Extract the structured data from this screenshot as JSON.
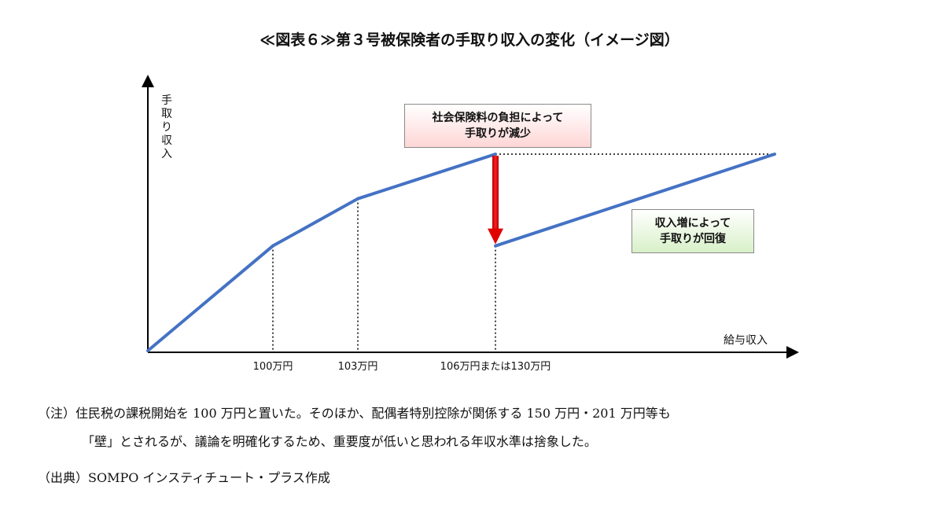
{
  "title": "≪図表６≫第３号被保険者の手取り収入の変化（イメージ図）",
  "chart_data": {
    "type": "line",
    "ylabel": "手取り収入",
    "xlabel": "給与収入",
    "x_tick_labels": [
      "100万円",
      "103万円",
      "106万円または130万円"
    ],
    "series": [
      {
        "points": [
          {
            "x": 0,
            "y": 0
          },
          {
            "x": 100,
            "y": 40
          },
          {
            "x": 103,
            "y": 58
          },
          {
            "x": 106,
            "y": 75
          },
          {
            "x": 106,
            "y": 40
          },
          {
            "x": 150,
            "y": 75
          }
        ]
      }
    ],
    "reference_line_y": 75,
    "annotations": [
      {
        "lines": [
          "社会保険料の負担によって",
          "手取りが減少"
        ],
        "color": "#ffd6d6"
      },
      {
        "lines": [
          "収入増によって",
          "手取りが回復"
        ],
        "color": "#d8f0c8"
      }
    ],
    "drop_arrow_color": "#e00000",
    "line_color": "#4472c4"
  },
  "notes": [
    "（注）住民税の課税開始を 100 万円と置いた。そのほか、配偶者特別控除が関係する 150 万円・201 万円等も",
    "「壁」とされるが、議論を明確化するため、重要度が低いと思われる年収水準は捨象した。",
    "（出典）SOMPO インスティチュート・プラス作成"
  ]
}
